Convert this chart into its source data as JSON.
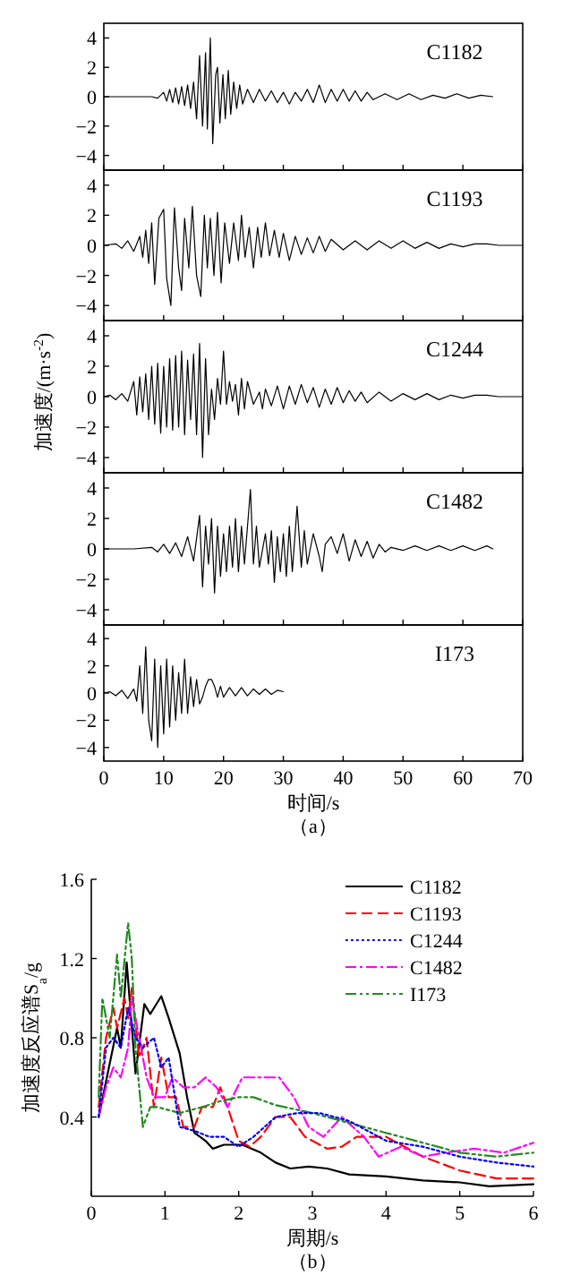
{
  "chart_data": [
    {
      "type": "line",
      "xlim": [
        0,
        70
      ],
      "xticks": [
        0,
        10,
        20,
        30,
        40,
        50,
        60,
        70
      ],
      "ylim": [
        -5,
        5
      ],
      "yticks": [
        -4,
        -2,
        0,
        2,
        4
      ],
      "tick_labels": "y",
      "grid": false,
      "legend": false,
      "series": [
        {
          "name": "C1182",
          "color": "#000000",
          "x": [
            0,
            5,
            8,
            9,
            10,
            10.5,
            11,
            11.5,
            12,
            12.5,
            13,
            13.5,
            14,
            14.5,
            15,
            15.5,
            16,
            16.5,
            17,
            17.3,
            17.8,
            18.2,
            18.7,
            19,
            19.4,
            19.9,
            20.3,
            20.8,
            21.2,
            21.7,
            22.2,
            22.7,
            23.2,
            24,
            25,
            26,
            27,
            28,
            29,
            30,
            31,
            32,
            33,
            34,
            35,
            36,
            37,
            38,
            39,
            40,
            41,
            42,
            43,
            44,
            45,
            47,
            49,
            51,
            53,
            55,
            57,
            59,
            61,
            63,
            65
          ],
          "values": [
            0,
            0,
            0,
            -0.1,
            0.3,
            -0.3,
            0.5,
            -0.4,
            0.6,
            -0.5,
            0.7,
            -0.6,
            0.8,
            -0.8,
            1.0,
            -1.5,
            2.8,
            -2.0,
            3.0,
            -2.2,
            4.0,
            -3.2,
            1.5,
            2.0,
            -1.8,
            1.5,
            -1.5,
            1.8,
            -1.2,
            1.0,
            -0.8,
            0.8,
            -0.5,
            0.5,
            -0.4,
            0.5,
            -0.3,
            0.4,
            -0.4,
            0.3,
            -0.5,
            0.3,
            -0.3,
            0.5,
            -0.4,
            0.8,
            -0.4,
            0.5,
            -0.3,
            0.5,
            -0.3,
            0.4,
            -0.3,
            0.3,
            -0.2,
            0.2,
            -0.2,
            0.2,
            -0.2,
            0.1,
            -0.1,
            0.2,
            -0.1,
            0.1,
            0
          ]
        }
      ]
    },
    {
      "type": "line",
      "xlim": [
        0,
        70
      ],
      "xticks": [
        0,
        10,
        20,
        30,
        40,
        50,
        60,
        70
      ],
      "ylim": [
        -5,
        5
      ],
      "yticks": [
        -4,
        -2,
        0,
        2,
        4
      ],
      "tick_labels": "y",
      "grid": false,
      "legend": false,
      "series": [
        {
          "name": "C1193",
          "color": "#000000",
          "x": [
            0,
            2,
            3,
            4,
            5,
            6,
            6.5,
            7,
            7.5,
            8,
            8.5,
            9.2,
            10,
            10.5,
            11.2,
            11.8,
            12.5,
            13,
            13.5,
            14.2,
            14.8,
            15.5,
            16.2,
            16.8,
            17.3,
            17.8,
            18.4,
            19,
            19.6,
            20.2,
            21,
            21.7,
            22.5,
            23,
            23.6,
            24.3,
            25,
            25.7,
            26.3,
            27,
            27.7,
            28.5,
            29.3,
            30,
            31,
            32,
            33,
            34,
            35,
            36,
            37,
            38,
            40,
            42,
            44,
            46,
            48,
            50,
            52,
            54,
            56,
            58,
            60,
            62,
            64,
            66,
            70
          ],
          "values": [
            0,
            0.1,
            -0.2,
            0.3,
            -0.4,
            0.6,
            -0.8,
            1.0,
            -1.2,
            1.5,
            -2.6,
            1.8,
            2.4,
            -2.2,
            -4.0,
            2.5,
            -1.5,
            -3.0,
            1.8,
            -1.5,
            2.6,
            -2.0,
            -3.4,
            2.0,
            -1.5,
            1.8,
            -2.0,
            2.2,
            -2.5,
            1.5,
            -1.2,
            1.5,
            -1.0,
            2.0,
            -0.8,
            1.2,
            -1.5,
            1.2,
            -0.8,
            1.5,
            -0.7,
            1.0,
            -0.8,
            0.8,
            -1.0,
            0.6,
            -0.6,
            0.5,
            -0.5,
            0.6,
            -0.4,
            0.4,
            -0.3,
            0.3,
            -0.3,
            0.3,
            -0.2,
            0.3,
            -0.2,
            0.2,
            -0.2,
            0.1,
            -0.1,
            0.1,
            0.1,
            0,
            0
          ]
        }
      ]
    },
    {
      "type": "line",
      "xlim": [
        0,
        70
      ],
      "xticks": [
        0,
        10,
        20,
        30,
        40,
        50,
        60,
        70
      ],
      "ylim": [
        -5,
        5
      ],
      "yticks": [
        -4,
        -2,
        0,
        2,
        4
      ],
      "tick_labels": "y",
      "grid": false,
      "legend": false,
      "ylabel": "加速度/(m·s$^{-2}$)",
      "series": [
        {
          "name": "C1244",
          "color": "#000000",
          "x": [
            0,
            1,
            2,
            3,
            4,
            5,
            5.5,
            6,
            6.5,
            7,
            7.5,
            8,
            8.5,
            9,
            9.5,
            10,
            10.5,
            11,
            11.5,
            12,
            12.5,
            13,
            13.5,
            14,
            14.5,
            15,
            15.5,
            16,
            16.5,
            17,
            17.5,
            18,
            18.5,
            19,
            19.5,
            20,
            20.5,
            21,
            21.5,
            22,
            22.5,
            23,
            23.5,
            24,
            25,
            26,
            26.5,
            27,
            28,
            29,
            30,
            31,
            32,
            33,
            34,
            35,
            36,
            37,
            38,
            39,
            40,
            41,
            42,
            43,
            44,
            46,
            48,
            50,
            52,
            54,
            56,
            58,
            60,
            62,
            64,
            66,
            70
          ],
          "values": [
            0,
            0.1,
            -0.2,
            0.2,
            -0.3,
            1.0,
            -1.2,
            1.3,
            -1.0,
            1.5,
            -1.5,
            2.0,
            -1.8,
            2.2,
            -2.4,
            2.0,
            -2.0,
            2.5,
            -2.2,
            2.7,
            -2.0,
            3.0,
            -2.5,
            2.4,
            -1.5,
            2.8,
            -2.5,
            3.5,
            -4.0,
            2.5,
            -2.5,
            0.5,
            -1.5,
            1.2,
            -0.5,
            3.0,
            -0.5,
            1.0,
            -0.3,
            0.8,
            -1.2,
            1.2,
            -0.8,
            1.0,
            -0.5,
            0.3,
            -0.8,
            0.5,
            -0.6,
            0.7,
            -0.8,
            0.7,
            -0.5,
            0.8,
            -0.4,
            0.6,
            -0.7,
            0.5,
            -0.5,
            0.6,
            -0.4,
            0.4,
            -0.3,
            0.3,
            -0.4,
            0.3,
            -0.3,
            0.2,
            -0.2,
            0.2,
            -0.2,
            0.1,
            -0.1,
            0.1,
            0.1,
            0,
            0
          ]
        }
      ]
    },
    {
      "type": "line",
      "xlim": [
        0,
        70
      ],
      "xticks": [
        0,
        10,
        20,
        30,
        40,
        50,
        60,
        70
      ],
      "ylim": [
        -5,
        5
      ],
      "yticks": [
        -4,
        -2,
        0,
        2,
        4
      ],
      "tick_labels": "y",
      "grid": false,
      "legend": false,
      "series": [
        {
          "name": "C1482",
          "color": "#000000",
          "x": [
            0,
            5,
            8,
            9,
            10,
            11,
            12,
            13,
            14,
            15,
            16,
            16.5,
            17,
            17.5,
            18,
            18.5,
            19,
            19.5,
            20,
            20.5,
            21,
            21.5,
            22,
            22.5,
            23,
            23.5,
            24.5,
            25,
            25.5,
            26,
            27,
            27.5,
            28,
            28.5,
            29,
            29.5,
            30,
            30.5,
            31,
            31.5,
            32.3,
            33,
            33.5,
            34,
            35,
            36,
            36.5,
            37,
            38,
            39,
            40,
            41,
            42,
            43,
            44,
            45,
            46,
            47,
            48,
            50,
            52,
            54,
            56,
            58,
            60,
            62,
            64,
            65
          ],
          "values": [
            0,
            0,
            0.1,
            -0.2,
            0.3,
            -0.3,
            0.4,
            -0.5,
            0.8,
            -0.8,
            2.2,
            -2.5,
            1.5,
            -1.0,
            2.0,
            -2.9,
            1.5,
            -1.8,
            1.0,
            -1.5,
            1.5,
            -1.2,
            2.0,
            -1.5,
            1.5,
            -1.0,
            3.9,
            -1.0,
            1.5,
            -1.2,
            1.0,
            -1.0,
            1.2,
            -2.2,
            0.8,
            -1.5,
            1.0,
            -1.8,
            1.5,
            -1.5,
            2.8,
            -1.2,
            1.2,
            -1.0,
            1.0,
            -0.5,
            -1.5,
            0.3,
            0.8,
            -0.3,
            1.0,
            -0.8,
            0.6,
            -0.5,
            0.5,
            -0.6,
            0.3,
            -0.2,
            0.1,
            -0.1,
            0.2,
            -0.1,
            0.2,
            -0.1,
            0.2,
            -0.1,
            0.2,
            0
          ]
        }
      ]
    },
    {
      "type": "line",
      "xlim": [
        0,
        70
      ],
      "xticks": [
        0,
        10,
        20,
        30,
        40,
        50,
        60,
        70
      ],
      "ylim": [
        -5,
        5
      ],
      "yticks": [
        -4,
        -2,
        0,
        2,
        4
      ],
      "grid": false,
      "legend": false,
      "xlabel": "时间/s",
      "annotations": [
        "（a）"
      ],
      "series": [
        {
          "name": "I173",
          "color": "#000000",
          "x": [
            0,
            1,
            2,
            3,
            4,
            5,
            5.5,
            6,
            6.5,
            7,
            7.5,
            8,
            8.5,
            9,
            9.5,
            10,
            10.5,
            11,
            11.5,
            12,
            12.5,
            13,
            13.5,
            14,
            14.5,
            15,
            15.5,
            16,
            16.5,
            17,
            17.5,
            18,
            18.5,
            19,
            19.5,
            20,
            21,
            22,
            23,
            24,
            25,
            26,
            27,
            28,
            29,
            30
          ],
          "values": [
            0,
            0.1,
            -0.2,
            0.2,
            -0.4,
            0.3,
            -0.6,
            2.0,
            -1.5,
            3.4,
            -2.0,
            -3.5,
            2.5,
            -4.0,
            2.0,
            -3.0,
            2.5,
            -2.5,
            2.0,
            -2.0,
            1.5,
            -1.5,
            2.5,
            -1.5,
            1.2,
            -1.0,
            1.0,
            -0.8,
            -0.3,
            0.5,
            1.0,
            1.0,
            0.5,
            -0.3,
            0.5,
            -0.3,
            0.4,
            -0.2,
            0.4,
            -0.2,
            0.3,
            -0.1,
            0.3,
            -0.1,
            0.2,
            0.1
          ]
        }
      ]
    },
    {
      "type": "line",
      "xlim": [
        0,
        6
      ],
      "xticks": [
        0,
        1,
        2,
        3,
        4,
        5,
        6
      ],
      "ylim": [
        0,
        1.6
      ],
      "yticks": [
        0.4,
        0.8,
        1.2,
        1.6
      ],
      "grid": false,
      "legend": "top right",
      "xlabel": "周期/s",
      "ylabel": "加速度反应谱S$_{a}$/g",
      "annotations": [
        "（b）"
      ],
      "series": [
        {
          "name": "C1182",
          "color": "#000000",
          "line_style": "solid",
          "x": [
            0.1,
            0.35,
            0.4,
            0.48,
            0.6,
            0.72,
            0.8,
            0.95,
            1.05,
            1.2,
            1.3,
            1.4,
            1.55,
            1.65,
            1.8,
            2.05,
            2.3,
            2.5,
            2.7,
            2.95,
            3.2,
            3.5,
            4,
            4.5,
            5,
            5.4,
            6
          ],
          "values": [
            0.4,
            0.85,
            0.75,
            1.18,
            0.62,
            0.97,
            0.92,
            1.01,
            0.9,
            0.72,
            0.5,
            0.32,
            0.28,
            0.24,
            0.26,
            0.26,
            0.22,
            0.17,
            0.14,
            0.15,
            0.14,
            0.11,
            0.1,
            0.08,
            0.07,
            0.05,
            0.06
          ]
        },
        {
          "name": "C1193",
          "color": "#ff0000",
          "line_style": "dashed",
          "x": [
            0.1,
            0.2,
            0.3,
            0.35,
            0.45,
            0.5,
            0.55,
            0.65,
            0.75,
            0.85,
            0.95,
            1.05,
            1.15,
            1.25,
            1.4,
            1.5,
            1.65,
            1.75,
            1.85,
            2.0,
            2.15,
            2.3,
            2.5,
            2.7,
            2.9,
            3.2,
            3.4,
            3.6,
            4.0,
            4.5,
            5.0,
            5.5,
            6.0
          ],
          "values": [
            0.45,
            0.8,
            0.95,
            0.85,
            1.0,
            0.9,
            1.05,
            0.7,
            0.8,
            0.45,
            0.7,
            0.5,
            0.5,
            0.35,
            0.35,
            0.45,
            0.45,
            0.55,
            0.45,
            0.28,
            0.25,
            0.3,
            0.4,
            0.4,
            0.3,
            0.24,
            0.25,
            0.3,
            0.3,
            0.2,
            0.13,
            0.09,
            0.09
          ]
        },
        {
          "name": "C1244",
          "color": "#0000ff",
          "line_style": "dotted",
          "x": [
            0.1,
            0.2,
            0.3,
            0.4,
            0.5,
            0.6,
            0.7,
            0.85,
            0.95,
            1.05,
            1.2,
            1.4,
            1.6,
            1.8,
            2.0,
            2.2,
            2.5,
            2.8,
            3.1,
            3.5,
            4.0,
            4.5,
            5.0,
            5.5,
            6.0
          ],
          "values": [
            0.4,
            0.75,
            0.8,
            0.75,
            0.95,
            0.8,
            0.75,
            0.8,
            0.65,
            0.7,
            0.35,
            0.33,
            0.3,
            0.3,
            0.25,
            0.3,
            0.4,
            0.42,
            0.42,
            0.38,
            0.28,
            0.25,
            0.2,
            0.17,
            0.15
          ]
        },
        {
          "name": "C1482",
          "color": "#ff00ff",
          "line_style": "dashdot",
          "x": [
            0.1,
            0.2,
            0.3,
            0.4,
            0.5,
            0.55,
            0.65,
            0.75,
            0.85,
            1.0,
            1.1,
            1.25,
            1.4,
            1.55,
            1.7,
            1.85,
            2.05,
            2.3,
            2.55,
            2.75,
            2.95,
            3.15,
            3.4,
            3.7,
            3.9,
            4.2,
            4.5,
            4.8,
            5.2,
            5.6,
            6.0
          ],
          "values": [
            0.4,
            0.55,
            0.65,
            0.6,
            0.75,
            1.0,
            0.8,
            0.6,
            0.5,
            0.5,
            0.6,
            0.55,
            0.55,
            0.6,
            0.55,
            0.45,
            0.6,
            0.6,
            0.6,
            0.5,
            0.35,
            0.3,
            0.4,
            0.3,
            0.2,
            0.25,
            0.2,
            0.22,
            0.24,
            0.22,
            0.27
          ]
        },
        {
          "name": "I173",
          "color": "#228b22",
          "line_style": "dashdotdot",
          "x": [
            0.1,
            0.15,
            0.25,
            0.35,
            0.4,
            0.5,
            0.55,
            0.6,
            0.7,
            0.8,
            0.9,
            1.2,
            1.5,
            1.75,
            2.0,
            2.2,
            2.5,
            3.0,
            3.5,
            4.0,
            4.5,
            5.0,
            5.5,
            6.0
          ],
          "values": [
            0.5,
            1.0,
            0.8,
            1.22,
            1.0,
            1.38,
            1.2,
            0.75,
            0.35,
            0.45,
            0.45,
            0.42,
            0.45,
            0.48,
            0.5,
            0.5,
            0.46,
            0.42,
            0.37,
            0.32,
            0.27,
            0.22,
            0.2,
            0.22
          ]
        }
      ]
    }
  ]
}
